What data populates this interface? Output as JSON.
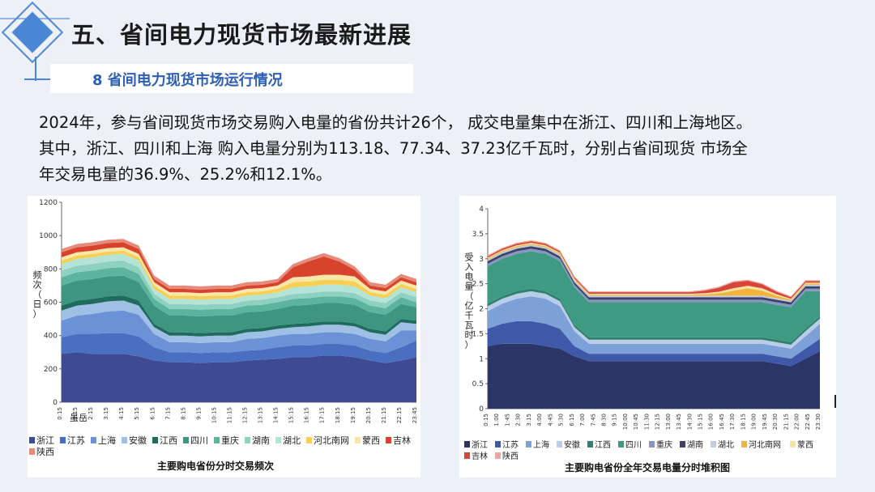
{
  "header": {
    "title": "五、省间电力现货市场最新进展",
    "subtitle": "8 省间电力现货市场运行情况"
  },
  "description": [
    "2024年，参与省间现货市场交易购入电量的省份共计26个， 成交电量集中在浙江、四川和上海地区。",
    "其中，浙江、四川和上海 购入电量分别为113.18、77.34、37.23亿千瓦时，分别占省间现货 市场全",
    "年交易电量的36.9%、25.2%和12.1%。"
  ],
  "chart_data": [
    {
      "type": "area",
      "stacked": true,
      "title": "主要购电省份分时交易频次",
      "ylabel": "频次（日）",
      "xlabel": "",
      "ylim": [
        0,
        1200
      ],
      "yticks": [
        "0",
        "200",
        "400",
        "600",
        "800",
        "1000",
        "1200"
      ],
      "xticks": [
        "0:15",
        "1:15",
        "2:15",
        "3:15",
        "4:15",
        "5:15",
        "6:15",
        "7:15",
        "8:15",
        "9:15",
        "10:15",
        "11:15",
        "12:15",
        "13:15",
        "14:15",
        "15:15",
        "16:15",
        "17:15",
        "18:15",
        "19:15",
        "20:15",
        "21:15",
        "22:15",
        "23:45"
      ],
      "x_label_note": "虽岳",
      "legend": [
        "浙江",
        "江苏",
        "上海",
        "安徽",
        "江西",
        "四川",
        "重庆",
        "湖南",
        "湖北",
        "河北南网",
        "蒙西",
        "吉林",
        "陕西"
      ],
      "legend_position": "bottom",
      "colors": [
        "#3e4a92",
        "#4a6fc0",
        "#6b92d6",
        "#9fc0e4",
        "#1f6b5e",
        "#3f9680",
        "#5db49d",
        "#8fd1c0",
        "#b5e3d5",
        "#f6cf55",
        "#f7e7a8",
        "#d7432d",
        "#e88a7a"
      ],
      "x": [
        0,
        1,
        2,
        3,
        4,
        5,
        6,
        7,
        8,
        9,
        10,
        11,
        12,
        13,
        14,
        15,
        16,
        17,
        18,
        19,
        20,
        21,
        22,
        23
      ],
      "series": [
        {
          "name": "浙江",
          "values": [
            290,
            300,
            290,
            290,
            290,
            275,
            250,
            240,
            240,
            235,
            240,
            240,
            250,
            255,
            260,
            270,
            270,
            280,
            280,
            270,
            250,
            235,
            250,
            270
          ]
        },
        {
          "name": "江苏",
          "values": [
            100,
            110,
            120,
            125,
            125,
            120,
            80,
            60,
            60,
            60,
            60,
            60,
            60,
            60,
            70,
            70,
            70,
            70,
            70,
            70,
            60,
            60,
            80,
            100
          ]
        },
        {
          "name": "上海",
          "values": [
            100,
            110,
            120,
            130,
            135,
            130,
            80,
            60,
            60,
            60,
            60,
            60,
            70,
            70,
            70,
            70,
            70,
            70,
            70,
            70,
            70,
            70,
            100,
            60
          ]
        },
        {
          "name": "安徽",
          "values": [
            60,
            60,
            60,
            60,
            60,
            55,
            40,
            40,
            40,
            40,
            40,
            40,
            40,
            40,
            40,
            40,
            45,
            45,
            45,
            45,
            40,
            40,
            50,
            40
          ]
        },
        {
          "name": "江西",
          "values": [
            30,
            30,
            30,
            30,
            30,
            30,
            20,
            20,
            20,
            20,
            20,
            20,
            20,
            20,
            20,
            20,
            20,
            20,
            20,
            20,
            20,
            20,
            20,
            20
          ]
        },
        {
          "name": "四川",
          "values": [
            120,
            120,
            120,
            120,
            120,
            110,
            110,
            100,
            100,
            100,
            100,
            100,
            100,
            100,
            100,
            110,
            110,
            110,
            110,
            110,
            100,
            100,
            90,
            80
          ]
        },
        {
          "name": "重庆",
          "values": [
            50,
            50,
            50,
            50,
            50,
            50,
            40,
            40,
            40,
            40,
            40,
            40,
            40,
            40,
            40,
            40,
            40,
            40,
            40,
            40,
            40,
            40,
            40,
            30
          ]
        },
        {
          "name": "湖南",
          "values": [
            40,
            40,
            40,
            40,
            40,
            40,
            30,
            30,
            30,
            30,
            30,
            30,
            30,
            30,
            30,
            30,
            30,
            30,
            30,
            30,
            30,
            30,
            30,
            30
          ]
        },
        {
          "name": "湖北",
          "values": [
            40,
            40,
            40,
            40,
            40,
            40,
            30,
            30,
            30,
            30,
            30,
            30,
            30,
            30,
            30,
            40,
            40,
            40,
            40,
            40,
            30,
            30,
            30,
            30
          ]
        },
        {
          "name": "河北南网",
          "values": [
            20,
            20,
            20,
            20,
            20,
            20,
            20,
            20,
            20,
            20,
            20,
            20,
            20,
            20,
            20,
            30,
            30,
            30,
            30,
            30,
            20,
            20,
            20,
            20
          ]
        },
        {
          "name": "蒙西",
          "values": [
            20,
            20,
            20,
            20,
            20,
            20,
            20,
            20,
            20,
            20,
            20,
            20,
            20,
            20,
            20,
            30,
            30,
            30,
            30,
            30,
            20,
            20,
            20,
            20
          ]
        },
        {
          "name": "吉林",
          "values": [
            30,
            30,
            30,
            30,
            30,
            30,
            20,
            20,
            20,
            20,
            20,
            20,
            20,
            20,
            20,
            60,
            90,
            110,
            80,
            40,
            20,
            20,
            20,
            20
          ]
        },
        {
          "name": "陕西",
          "values": [
            20,
            20,
            20,
            20,
            20,
            20,
            20,
            20,
            20,
            20,
            20,
            20,
            20,
            20,
            20,
            20,
            20,
            20,
            20,
            20,
            20,
            20,
            20,
            20
          ]
        }
      ]
    },
    {
      "type": "area",
      "stacked": true,
      "title": "主要购电省份全年交易电量分时堆积图",
      "ylabel": "受入电量（亿千瓦时）",
      "xlabel": "",
      "ylim": [
        0,
        4
      ],
      "yticks": [
        "0",
        "0.5",
        "1",
        "1.5",
        "2",
        "2.5",
        "3",
        "3.5",
        "4"
      ],
      "xticks": [
        "0:15",
        "1:00",
        "1:45",
        "2:30",
        "3:15",
        "4:00",
        "4:45",
        "5:30",
        "6:15",
        "7:00",
        "7:45",
        "8:30",
        "9:15",
        "10:00",
        "10:45",
        "11:30",
        "12:15",
        "13:00",
        "13:45",
        "14:30",
        "15:15",
        "16:00",
        "16:45",
        "17:30",
        "18:15",
        "19:00",
        "19:45",
        "20:30",
        "21:15",
        "22:00",
        "22:45",
        "23:30"
      ],
      "legend": [
        "浙江",
        "江苏",
        "上海",
        "安徽",
        "江西",
        "四川",
        "重庆",
        "湖南",
        "湖北",
        "河北南网",
        "蒙西",
        "吉林",
        "陕西"
      ],
      "legend_position": "bottom",
      "colors": [
        "#2c3568",
        "#3f58a8",
        "#7da0d8",
        "#b9cde9",
        "#2e7f6c",
        "#3f9a84",
        "#8a96c2",
        "#3b4468",
        "#c2cce0",
        "#f2b43a",
        "#f5e3a0",
        "#d8453a",
        "#f0a5a0"
      ],
      "x": [
        0,
        1,
        2,
        3,
        4,
        5,
        6,
        7,
        8,
        9,
        10,
        11,
        12,
        13,
        14,
        15,
        16,
        17,
        18,
        19,
        20,
        21,
        22,
        23
      ],
      "series": [
        {
          "name": "浙江",
          "values": [
            1.25,
            1.3,
            1.3,
            1.3,
            1.25,
            1.2,
            1.05,
            0.95,
            0.95,
            0.95,
            0.95,
            0.95,
            0.95,
            0.95,
            0.95,
            0.95,
            0.95,
            0.95,
            0.95,
            0.95,
            0.9,
            0.85,
            1.0,
            1.15
          ]
        },
        {
          "name": "江苏",
          "values": [
            0.35,
            0.4,
            0.45,
            0.45,
            0.45,
            0.4,
            0.2,
            0.15,
            0.15,
            0.15,
            0.15,
            0.15,
            0.15,
            0.15,
            0.15,
            0.15,
            0.15,
            0.15,
            0.15,
            0.15,
            0.15,
            0.15,
            0.2,
            0.25
          ]
        },
        {
          "name": "上海",
          "values": [
            0.35,
            0.4,
            0.45,
            0.5,
            0.5,
            0.45,
            0.3,
            0.2,
            0.2,
            0.2,
            0.2,
            0.2,
            0.2,
            0.2,
            0.2,
            0.2,
            0.2,
            0.2,
            0.2,
            0.2,
            0.2,
            0.2,
            0.25,
            0.3
          ]
        },
        {
          "name": "安徽",
          "values": [
            0.1,
            0.1,
            0.1,
            0.1,
            0.1,
            0.1,
            0.08,
            0.08,
            0.08,
            0.08,
            0.08,
            0.08,
            0.08,
            0.08,
            0.08,
            0.08,
            0.08,
            0.08,
            0.08,
            0.08,
            0.08,
            0.08,
            0.1,
            0.1
          ]
        },
        {
          "name": "江西",
          "values": [
            0.05,
            0.05,
            0.05,
            0.05,
            0.05,
            0.05,
            0.05,
            0.05,
            0.05,
            0.05,
            0.05,
            0.05,
            0.05,
            0.05,
            0.05,
            0.05,
            0.05,
            0.05,
            0.05,
            0.05,
            0.05,
            0.05,
            0.05,
            0.05
          ]
        },
        {
          "name": "四川",
          "values": [
            0.75,
            0.75,
            0.75,
            0.75,
            0.75,
            0.75,
            0.75,
            0.7,
            0.7,
            0.7,
            0.7,
            0.7,
            0.7,
            0.7,
            0.7,
            0.7,
            0.7,
            0.7,
            0.7,
            0.7,
            0.7,
            0.7,
            0.75,
            0.5
          ]
        },
        {
          "name": "重庆",
          "values": [
            0.05,
            0.05,
            0.05,
            0.05,
            0.05,
            0.05,
            0.05,
            0.05,
            0.05,
            0.05,
            0.05,
            0.05,
            0.05,
            0.05,
            0.05,
            0.05,
            0.05,
            0.05,
            0.05,
            0.05,
            0.05,
            0.05,
            0.05,
            0.05
          ]
        },
        {
          "name": "湖南",
          "values": [
            0.05,
            0.05,
            0.05,
            0.05,
            0.05,
            0.05,
            0.05,
            0.05,
            0.05,
            0.05,
            0.05,
            0.05,
            0.05,
            0.05,
            0.05,
            0.05,
            0.05,
            0.05,
            0.05,
            0.05,
            0.05,
            0.05,
            0.05,
            0.05
          ]
        },
        {
          "name": "湖北",
          "values": [
            0.03,
            0.03,
            0.03,
            0.03,
            0.03,
            0.03,
            0.03,
            0.03,
            0.03,
            0.03,
            0.03,
            0.03,
            0.03,
            0.03,
            0.03,
            0.03,
            0.03,
            0.03,
            0.03,
            0.03,
            0.03,
            0.03,
            0.03,
            0.03
          ]
        },
        {
          "name": "河北南网",
          "values": [
            0.02,
            0.02,
            0.02,
            0.02,
            0.02,
            0.02,
            0.02,
            0.02,
            0.02,
            0.02,
            0.02,
            0.02,
            0.02,
            0.02,
            0.02,
            0.03,
            0.05,
            0.1,
            0.15,
            0.1,
            0.05,
            0.02,
            0.02,
            0.02
          ]
        },
        {
          "name": "蒙西",
          "values": [
            0.02,
            0.02,
            0.02,
            0.02,
            0.02,
            0.02,
            0.02,
            0.02,
            0.02,
            0.02,
            0.02,
            0.02,
            0.02,
            0.02,
            0.02,
            0.02,
            0.03,
            0.05,
            0.05,
            0.05,
            0.03,
            0.02,
            0.02,
            0.02
          ]
        },
        {
          "name": "吉林",
          "values": [
            0.03,
            0.03,
            0.03,
            0.03,
            0.03,
            0.03,
            0.03,
            0.03,
            0.03,
            0.03,
            0.03,
            0.03,
            0.03,
            0.03,
            0.03,
            0.05,
            0.08,
            0.12,
            0.1,
            0.08,
            0.05,
            0.03,
            0.03,
            0.03
          ]
        },
        {
          "name": "陕西",
          "values": [
            0.02,
            0.02,
            0.02,
            0.02,
            0.02,
            0.02,
            0.02,
            0.02,
            0.02,
            0.02,
            0.02,
            0.02,
            0.02,
            0.02,
            0.02,
            0.02,
            0.02,
            0.02,
            0.02,
            0.02,
            0.02,
            0.02,
            0.02,
            0.02
          ]
        }
      ]
    }
  ]
}
